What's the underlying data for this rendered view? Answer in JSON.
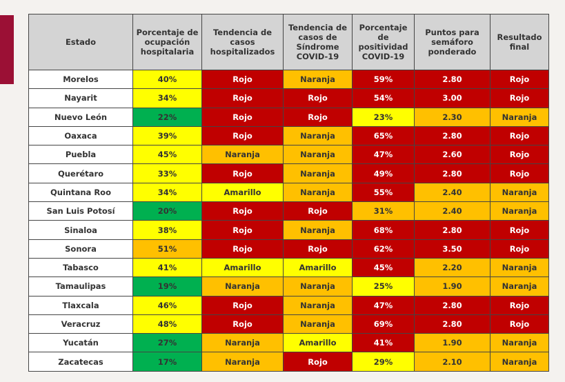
{
  "headers": [
    "Estado",
    "Porcentaje de ocupación hospitalaria",
    "Tendencia de casos hospitalizados",
    "Tendencia de casos de Síndrome COVID-19",
    "Porcentaje de positividad COVID-19",
    "Puntos para semáforo ponderado",
    "Resultado final"
  ],
  "colors": {
    "r": "#c00000",
    "y": "#ffff00",
    "o": "#ffc000",
    "g": "#00b050"
  },
  "rows": [
    {
      "cells": [
        "Morelos",
        "40%",
        "Rojo",
        "Naranja",
        "59%",
        "2.80",
        "Rojo"
      ],
      "colors": [
        "w",
        "y",
        "r",
        "o",
        "r",
        "r",
        "r"
      ]
    },
    {
      "cells": [
        "Nayarit",
        "34%",
        "Rojo",
        "Rojo",
        "54%",
        "3.00",
        "Rojo"
      ],
      "colors": [
        "w",
        "y",
        "r",
        "r",
        "r",
        "r",
        "r"
      ]
    },
    {
      "cells": [
        "Nuevo León",
        "22%",
        "Rojo",
        "Rojo",
        "23%",
        "2.30",
        "Naranja"
      ],
      "colors": [
        "w",
        "g",
        "r",
        "r",
        "y",
        "o",
        "o"
      ]
    },
    {
      "cells": [
        "Oaxaca",
        "39%",
        "Rojo",
        "Naranja",
        "65%",
        "2.80",
        "Rojo"
      ],
      "colors": [
        "w",
        "y",
        "r",
        "o",
        "r",
        "r",
        "r"
      ]
    },
    {
      "cells": [
        "Puebla",
        "45%",
        "Naranja",
        "Naranja",
        "47%",
        "2.60",
        "Rojo"
      ],
      "colors": [
        "w",
        "y",
        "o",
        "o",
        "r",
        "r",
        "r"
      ]
    },
    {
      "cells": [
        "Querétaro",
        "33%",
        "Rojo",
        "Naranja",
        "49%",
        "2.80",
        "Rojo"
      ],
      "colors": [
        "w",
        "y",
        "r",
        "o",
        "r",
        "r",
        "r"
      ]
    },
    {
      "cells": [
        "Quintana Roo",
        "34%",
        "Amarillo",
        "Naranja",
        "55%",
        "2.40",
        "Naranja"
      ],
      "colors": [
        "w",
        "y",
        "y",
        "o",
        "r",
        "o",
        "o"
      ]
    },
    {
      "cells": [
        "San Luis Potosí",
        "20%",
        "Rojo",
        "Rojo",
        "31%",
        "2.40",
        "Naranja"
      ],
      "colors": [
        "w",
        "g",
        "r",
        "r",
        "o",
        "o",
        "o"
      ]
    },
    {
      "cells": [
        "Sinaloa",
        "38%",
        "Rojo",
        "Naranja",
        "68%",
        "2.80",
        "Rojo"
      ],
      "colors": [
        "w",
        "y",
        "r",
        "o",
        "r",
        "r",
        "r"
      ]
    },
    {
      "cells": [
        "Sonora",
        "51%",
        "Rojo",
        "Rojo",
        "62%",
        "3.50",
        "Rojo"
      ],
      "colors": [
        "w",
        "o",
        "r",
        "r",
        "r",
        "r",
        "r"
      ]
    },
    {
      "cells": [
        "Tabasco",
        "41%",
        "Amarillo",
        "Amarillo",
        "45%",
        "2.20",
        "Naranja"
      ],
      "colors": [
        "w",
        "y",
        "y",
        "y",
        "r",
        "o",
        "o"
      ]
    },
    {
      "cells": [
        "Tamaulipas",
        "19%",
        "Naranja",
        "Naranja",
        "25%",
        "1.90",
        "Naranja"
      ],
      "colors": [
        "w",
        "g",
        "o",
        "o",
        "y",
        "o",
        "o"
      ]
    },
    {
      "cells": [
        "Tlaxcala",
        "46%",
        "Rojo",
        "Naranja",
        "47%",
        "2.80",
        "Rojo"
      ],
      "colors": [
        "w",
        "y",
        "r",
        "o",
        "r",
        "r",
        "r"
      ]
    },
    {
      "cells": [
        "Veracruz",
        "48%",
        "Rojo",
        "Naranja",
        "69%",
        "2.80",
        "Rojo"
      ],
      "colors": [
        "w",
        "y",
        "r",
        "o",
        "r",
        "r",
        "r"
      ]
    },
    {
      "cells": [
        "Yucatán",
        "27%",
        "Naranja",
        "Amarillo",
        "41%",
        "1.90",
        "Naranja"
      ],
      "colors": [
        "w",
        "g",
        "o",
        "y",
        "r",
        "o",
        "o"
      ]
    },
    {
      "cells": [
        "Zacatecas",
        "17%",
        "Naranja",
        "Rojo",
        "29%",
        "2.10",
        "Naranja"
      ],
      "colors": [
        "w",
        "g",
        "o",
        "r",
        "y",
        "o",
        "o"
      ]
    }
  ]
}
